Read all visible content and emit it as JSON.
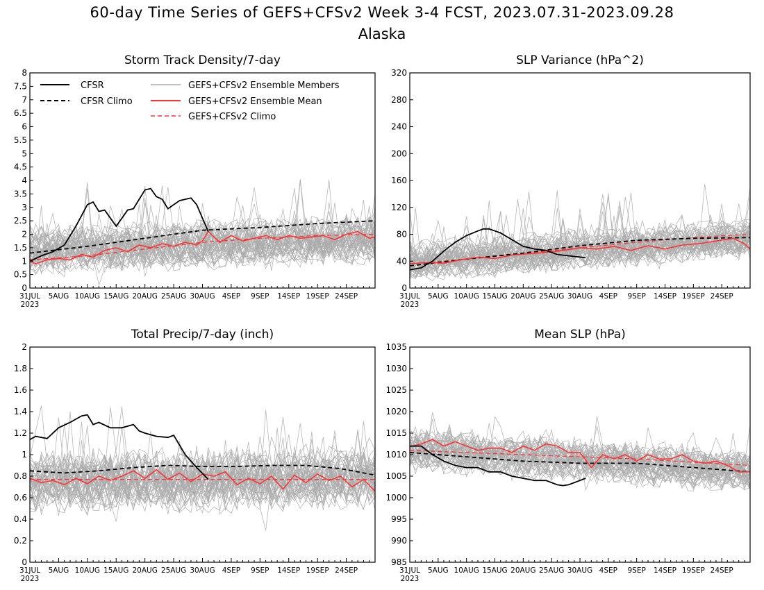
{
  "figure": {
    "title_line1": "60-day Time Series of GEFS+CFSv2 Week 3-4 FCST, 2023.07.31-2023.09.28",
    "title_line2": "Alaska"
  },
  "legend": {
    "cfsr": "CFSR",
    "cfsr_climo": "CFSR Climo",
    "members": "GEFS+CFSv2 Ensemble Members",
    "mean": "GEFS+CFSv2 Ensemble Mean",
    "climo": "GEFS+CFSv2 Climo"
  },
  "colors": {
    "cfsr": "#000000",
    "members": "#aaaaaa",
    "mean": "#ff3333",
    "legend_members_text": "#aaaaaa",
    "legend_mean_text": "#ff3333"
  },
  "x_axis": {
    "tick_labels": [
      "31JUL",
      "5AUG",
      "10AUG",
      "15AUG",
      "20AUG",
      "25AUG",
      "30AUG",
      "4SEP",
      "9SEP",
      "14SEP",
      "19SEP",
      "24SEP"
    ],
    "tick_days": [
      0,
      5,
      10,
      15,
      20,
      25,
      30,
      35,
      40,
      45,
      50,
      55
    ],
    "year_label": "2023",
    "range_days": [
      0,
      60
    ]
  },
  "chart_data": [
    {
      "type": "line",
      "title": "Storm Track Density/7-day",
      "ylim": [
        0,
        8
      ],
      "yticks": [
        "0",
        "0.5",
        "1",
        "1.5",
        "2",
        "2.5",
        "3",
        "3.5",
        "4",
        "4.5",
        "5",
        "5.5",
        "6",
        "6.5",
        "7",
        "7.5",
        "8"
      ],
      "ytick_values": [
        0,
        0.5,
        1,
        1.5,
        2,
        2.5,
        3,
        3.5,
        4,
        4.5,
        5,
        5.5,
        6,
        6.5,
        7,
        7.5,
        8
      ],
      "legend_placement": "top",
      "members_band": {
        "center": [
          1.4,
          1.8
        ],
        "spread": 0.9,
        "spike": 2.6
      },
      "series": [
        {
          "key": "cfsr",
          "x": [
            0,
            2,
            4,
            6,
            8,
            10,
            11,
            12,
            13,
            14,
            15,
            16,
            17,
            18,
            19,
            20,
            21,
            22,
            23,
            24,
            25,
            26,
            27,
            28,
            29,
            30,
            31
          ],
          "values": [
            1.0,
            1.2,
            1.35,
            1.6,
            2.3,
            3.1,
            3.2,
            2.85,
            2.9,
            2.6,
            2.3,
            2.6,
            2.9,
            2.95,
            3.3,
            3.65,
            3.7,
            3.4,
            3.3,
            2.95,
            3.1,
            3.25,
            3.3,
            3.35,
            3.1,
            2.6,
            2.1
          ]
        },
        {
          "key": "cfsr_climo",
          "x": [
            0,
            10,
            20,
            30,
            40,
            50,
            60
          ],
          "values": [
            1.3,
            1.55,
            1.85,
            2.15,
            2.25,
            2.4,
            2.5
          ]
        },
        {
          "key": "mean",
          "x": [
            0,
            1,
            3,
            5,
            7,
            9,
            11,
            13,
            15,
            17,
            19,
            21,
            23,
            25,
            27,
            29,
            30,
            31,
            33,
            35,
            37,
            39,
            41,
            43,
            45,
            47,
            49,
            51,
            53,
            55,
            57,
            59,
            60
          ],
          "values": [
            1.0,
            0.9,
            1.05,
            1.1,
            1.05,
            1.25,
            1.15,
            1.4,
            1.5,
            1.35,
            1.6,
            1.5,
            1.65,
            1.55,
            1.7,
            1.6,
            1.75,
            2.1,
            1.7,
            1.95,
            1.75,
            1.85,
            1.95,
            1.8,
            1.95,
            1.85,
            1.9,
            1.95,
            1.8,
            2.0,
            2.1,
            1.85,
            1.9
          ]
        },
        {
          "key": "climo",
          "x": [
            0,
            10,
            20,
            30,
            40,
            50,
            60
          ],
          "values": [
            1.05,
            1.2,
            1.45,
            1.7,
            1.85,
            1.95,
            2.0
          ]
        }
      ]
    },
    {
      "type": "line",
      "title": "SLP Variance (hPa^2)",
      "ylim": [
        0,
        320
      ],
      "yticks": [
        "0",
        "40",
        "80",
        "120",
        "160",
        "200",
        "240",
        "280",
        "320"
      ],
      "ytick_values": [
        0,
        40,
        80,
        120,
        160,
        200,
        240,
        280,
        320
      ],
      "legend_placement": "none",
      "members_band": {
        "center": [
          40,
          75
        ],
        "spread": 30,
        "spike": 110
      },
      "series": [
        {
          "key": "cfsr",
          "x": [
            0,
            2,
            4,
            6,
            8,
            10,
            12,
            13,
            14,
            15,
            16,
            18,
            20,
            22,
            24,
            26,
            28,
            30,
            31
          ],
          "values": [
            27,
            30,
            40,
            55,
            68,
            78,
            85,
            88,
            88,
            85,
            82,
            72,
            62,
            58,
            56,
            50,
            48,
            46,
            45
          ]
        },
        {
          "key": "cfsr_climo",
          "x": [
            0,
            10,
            20,
            30,
            40,
            50,
            60
          ],
          "values": [
            33,
            43,
            52,
            63,
            71,
            74,
            75
          ]
        },
        {
          "key": "mean",
          "x": [
            0,
            3,
            6,
            9,
            12,
            15,
            18,
            21,
            24,
            27,
            30,
            33,
            36,
            39,
            42,
            45,
            48,
            51,
            54,
            57,
            59,
            60
          ],
          "values": [
            36,
            38,
            37,
            42,
            46,
            44,
            49,
            51,
            53,
            56,
            60,
            58,
            62,
            56,
            63,
            58,
            64,
            66,
            70,
            74,
            66,
            58
          ]
        },
        {
          "key": "climo",
          "x": [
            0,
            10,
            20,
            30,
            40,
            50,
            60
          ],
          "values": [
            36,
            43,
            51,
            60,
            68,
            75,
            80
          ]
        }
      ]
    },
    {
      "type": "line",
      "title": "Total Precip/7-day (inch)",
      "ylim": [
        0,
        2
      ],
      "yticks": [
        "0",
        "0.2",
        "0.4",
        "0.6",
        "0.8",
        "1",
        "1.2",
        "1.4",
        "1.6",
        "1.8",
        "2"
      ],
      "ytick_values": [
        0,
        0.2,
        0.4,
        0.6,
        0.8,
        1.0,
        1.2,
        1.4,
        1.6,
        1.8,
        2.0
      ],
      "legend_placement": "none",
      "members_band": {
        "center": [
          0.75,
          0.78
        ],
        "spread": 0.3,
        "spike": 0.75
      },
      "series": [
        {
          "key": "cfsr",
          "x": [
            0,
            1,
            3,
            5,
            7,
            9,
            10,
            11,
            12,
            14,
            16,
            18,
            19,
            20,
            22,
            24,
            25,
            27,
            29,
            31
          ],
          "values": [
            1.14,
            1.17,
            1.15,
            1.25,
            1.3,
            1.36,
            1.37,
            1.28,
            1.3,
            1.25,
            1.25,
            1.28,
            1.22,
            1.2,
            1.17,
            1.16,
            1.18,
            1.0,
            0.88,
            0.77
          ]
        },
        {
          "key": "cfsr_climo",
          "x": [
            0,
            6,
            12,
            18,
            24,
            30,
            36,
            42,
            48,
            54,
            60
          ],
          "values": [
            0.85,
            0.83,
            0.85,
            0.88,
            0.9,
            0.89,
            0.89,
            0.9,
            0.9,
            0.87,
            0.81
          ]
        },
        {
          "key": "mean",
          "x": [
            0,
            2,
            4,
            6,
            8,
            10,
            12,
            14,
            16,
            18,
            20,
            22,
            24,
            26,
            28,
            30,
            32,
            34,
            36,
            38,
            40,
            42,
            44,
            46,
            48,
            50,
            52,
            54,
            56,
            58,
            60
          ],
          "values": [
            0.78,
            0.74,
            0.76,
            0.72,
            0.78,
            0.73,
            0.8,
            0.76,
            0.8,
            0.85,
            0.78,
            0.86,
            0.77,
            0.83,
            0.75,
            0.82,
            0.8,
            0.84,
            0.72,
            0.78,
            0.73,
            0.8,
            0.68,
            0.81,
            0.74,
            0.82,
            0.76,
            0.8,
            0.7,
            0.77,
            0.66
          ]
        },
        {
          "key": "climo",
          "x": [
            0,
            60
          ],
          "values": [
            0.77,
            0.77
          ]
        }
      ]
    },
    {
      "type": "line",
      "title": "Mean SLP (hPa)",
      "ylim": [
        985,
        1035
      ],
      "yticks": [
        "985",
        "990",
        "995",
        "1000",
        "1005",
        "1010",
        "1015",
        "1020",
        "1025",
        "1030",
        "1035"
      ],
      "ytick_values": [
        985,
        990,
        995,
        1000,
        1005,
        1010,
        1015,
        1020,
        1025,
        1030,
        1035
      ],
      "legend_placement": "none",
      "members_band": {
        "center": [
          1011,
          1006
        ],
        "spread": 5,
        "spike": 10
      },
      "series": [
        {
          "key": "cfsr",
          "x": [
            0,
            2,
            4,
            6,
            8,
            10,
            12,
            14,
            16,
            18,
            20,
            22,
            24,
            26,
            27,
            28,
            30,
            31
          ],
          "values": [
            1012,
            1012,
            1010,
            1008.5,
            1007.5,
            1007,
            1007,
            1006,
            1006,
            1005,
            1004.5,
            1004,
            1004,
            1003,
            1002.8,
            1003,
            1004,
            1004.5
          ]
        },
        {
          "key": "cfsr_climo",
          "x": [
            0,
            10,
            20,
            30,
            40,
            50,
            60
          ],
          "values": [
            1010.5,
            1009.5,
            1008.5,
            1008,
            1008,
            1007,
            1006
          ]
        },
        {
          "key": "mean",
          "x": [
            0,
            2,
            4,
            6,
            8,
            10,
            12,
            14,
            16,
            18,
            20,
            22,
            24,
            26,
            28,
            30,
            32,
            34,
            36,
            38,
            40,
            42,
            44,
            46,
            48,
            50,
            52,
            54,
            56,
            58,
            60
          ],
          "values": [
            1011.8,
            1012.5,
            1013.5,
            1012,
            1013,
            1012,
            1011,
            1011.5,
            1011.5,
            1010.5,
            1012,
            1011,
            1012.5,
            1012,
            1010.5,
            1010.5,
            1007,
            1010,
            1009,
            1010,
            1008.5,
            1010,
            1009,
            1009,
            1010,
            1008.5,
            1008,
            1008.5,
            1007.5,
            1006,
            1006
          ]
        },
        {
          "key": "climo",
          "x": [
            0,
            20,
            40,
            60
          ],
          "values": [
            1011,
            1010,
            1009,
            1007.5
          ]
        }
      ]
    }
  ]
}
